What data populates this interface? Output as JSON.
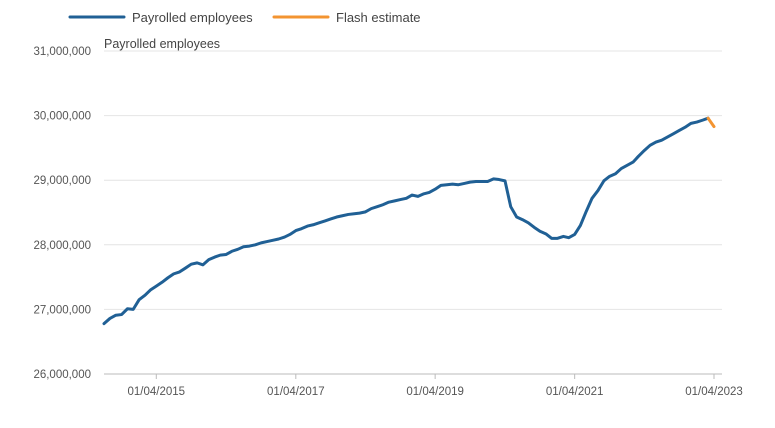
{
  "chart_data": {
    "type": "line",
    "ylabel": "Payrolled employees",
    "ylim": [
      26000000,
      31000000
    ],
    "xlim": [
      "2014-07-01",
      "2023-04-01"
    ],
    "yticks": [
      {
        "value": 26000000,
        "label": "26,000,000"
      },
      {
        "value": 27000000,
        "label": "27,000,000"
      },
      {
        "value": 28000000,
        "label": "28,000,000"
      },
      {
        "value": 29000000,
        "label": "29,000,000"
      },
      {
        "value": 30000000,
        "label": "30,000,000"
      },
      {
        "value": 31000000,
        "label": "31,000,000"
      }
    ],
    "xticks": [
      {
        "value": "2015-04-01",
        "label": "01/04/2015"
      },
      {
        "value": "2017-04-01",
        "label": "01/04/2017"
      },
      {
        "value": "2019-04-01",
        "label": "01/04/2019"
      },
      {
        "value": "2021-04-01",
        "label": "01/04/2021"
      },
      {
        "value": "2023-04-01",
        "label": "01/04/2023"
      }
    ],
    "grid": true,
    "legend_position": "top-left",
    "colors": {
      "payrolled": "#206095",
      "flash": "#f39431",
      "grid": "#e4e4e4",
      "axis": "#bbbbbb"
    },
    "series": [
      {
        "name": "Payrolled employees",
        "x": [
          "2014-07-01",
          "2014-08-01",
          "2014-09-01",
          "2014-10-01",
          "2014-11-01",
          "2014-12-01",
          "2015-01-01",
          "2015-02-01",
          "2015-03-01",
          "2015-04-01",
          "2015-05-01",
          "2015-06-01",
          "2015-07-01",
          "2015-08-01",
          "2015-09-01",
          "2015-10-01",
          "2015-11-01",
          "2015-12-01",
          "2016-01-01",
          "2016-02-01",
          "2016-03-01",
          "2016-04-01",
          "2016-05-01",
          "2016-06-01",
          "2016-07-01",
          "2016-08-01",
          "2016-09-01",
          "2016-10-01",
          "2016-11-01",
          "2016-12-01",
          "2017-01-01",
          "2017-02-01",
          "2017-03-01",
          "2017-04-01",
          "2017-05-01",
          "2017-06-01",
          "2017-07-01",
          "2017-08-01",
          "2017-09-01",
          "2017-10-01",
          "2017-11-01",
          "2017-12-01",
          "2018-01-01",
          "2018-02-01",
          "2018-03-01",
          "2018-04-01",
          "2018-05-01",
          "2018-06-01",
          "2018-07-01",
          "2018-08-01",
          "2018-09-01",
          "2018-10-01",
          "2018-11-01",
          "2018-12-01",
          "2019-01-01",
          "2019-02-01",
          "2019-03-01",
          "2019-04-01",
          "2019-05-01",
          "2019-06-01",
          "2019-07-01",
          "2019-08-01",
          "2019-09-01",
          "2019-10-01",
          "2019-11-01",
          "2019-12-01",
          "2020-01-01",
          "2020-02-01",
          "2020-03-01",
          "2020-04-01",
          "2020-05-01",
          "2020-06-01",
          "2020-07-01",
          "2020-08-01",
          "2020-09-01",
          "2020-10-01",
          "2020-11-01",
          "2020-12-01",
          "2021-01-01",
          "2021-02-01",
          "2021-03-01",
          "2021-04-01",
          "2021-05-01",
          "2021-06-01",
          "2021-07-01",
          "2021-08-01",
          "2021-09-01",
          "2021-10-01",
          "2021-11-01",
          "2021-12-01",
          "2022-01-01",
          "2022-02-01",
          "2022-03-01",
          "2022-04-01",
          "2022-05-01",
          "2022-06-01",
          "2022-07-01",
          "2022-08-01",
          "2022-09-01",
          "2022-10-01",
          "2022-11-01",
          "2022-12-01",
          "2023-01-01",
          "2023-02-01",
          "2023-03-01"
        ],
        "values": [
          26780000,
          26860000,
          26910000,
          26920000,
          27010000,
          27000000,
          27150000,
          27220000,
          27300000,
          27360000,
          27420000,
          27490000,
          27550000,
          27580000,
          27640000,
          27700000,
          27720000,
          27690000,
          27770000,
          27810000,
          27840000,
          27850000,
          27900000,
          27930000,
          27970000,
          27980000,
          28000000,
          28030000,
          28050000,
          28070000,
          28090000,
          28120000,
          28160000,
          28220000,
          28250000,
          28290000,
          28310000,
          28340000,
          28370000,
          28400000,
          28430000,
          28450000,
          28470000,
          28480000,
          28490000,
          28510000,
          28560000,
          28590000,
          28620000,
          28660000,
          28680000,
          28700000,
          28720000,
          28770000,
          28750000,
          28790000,
          28810000,
          28860000,
          28920000,
          28930000,
          28940000,
          28930000,
          28950000,
          28970000,
          28980000,
          28980000,
          28980000,
          29020000,
          29010000,
          28990000,
          28590000,
          28430000,
          28390000,
          28340000,
          28270000,
          28210000,
          28170000,
          28100000,
          28100000,
          28130000,
          28110000,
          28160000,
          28300000,
          28520000,
          28720000,
          28840000,
          28990000,
          29060000,
          29100000,
          29180000,
          29230000,
          29280000,
          29370000,
          29460000,
          29540000,
          29590000,
          29620000,
          29670000,
          29720000,
          29770000,
          29820000,
          29880000,
          29900000,
          29930000,
          29960000
        ],
        "color": "#206095"
      },
      {
        "name": "Flash estimate",
        "x": [
          "2023-03-01",
          "2023-04-01"
        ],
        "values": [
          29960000,
          29830000
        ],
        "color": "#f39431"
      }
    ]
  }
}
